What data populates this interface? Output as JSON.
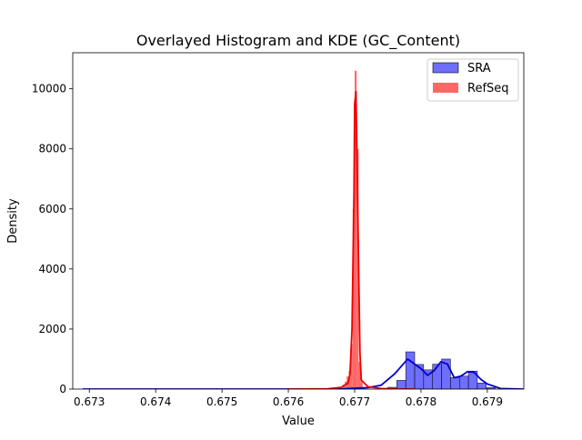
{
  "chart_data": {
    "type": "histogram",
    "title": "Overlayed Histogram and KDE (GC_Content)",
    "xlabel": "Value",
    "ylabel": "Density",
    "xlim": [
      0.67275,
      0.67955
    ],
    "ylim": [
      0,
      11200
    ],
    "xticks": [
      0.673,
      0.674,
      0.675,
      0.676,
      0.677,
      0.678,
      0.679
    ],
    "xtick_labels": [
      "0.673",
      "0.674",
      "0.675",
      "0.676",
      "0.677",
      "0.678",
      "0.679"
    ],
    "yticks": [
      0,
      2000,
      4000,
      6000,
      8000,
      10000
    ],
    "ytick_labels": [
      "0",
      "2000",
      "4000",
      "6000",
      "8000",
      "10000"
    ],
    "grid": false,
    "legend_position": "top-right",
    "series": [
      {
        "name": "SRA",
        "kind": "histogram+kde",
        "fill": "#5555ff",
        "fill_opacity": 0.85,
        "line_color": "#0000cc",
        "bin_width": 0.000135,
        "bins": [
          {
            "x0": 0.6775,
            "density": 60
          },
          {
            "x0": 0.677635,
            "density": 290
          },
          {
            "x0": 0.67777,
            "density": 1240
          },
          {
            "x0": 0.677905,
            "density": 820
          },
          {
            "x0": 0.67804,
            "density": 640
          },
          {
            "x0": 0.678175,
            "density": 830
          },
          {
            "x0": 0.67831,
            "density": 1000
          },
          {
            "x0": 0.678445,
            "density": 380
          },
          {
            "x0": 0.67858,
            "density": 430
          },
          {
            "x0": 0.678715,
            "density": 600
          },
          {
            "x0": 0.67885,
            "density": 200
          },
          {
            "x0": 0.678985,
            "density": 50
          }
        ],
        "kde": {
          "x": [
            0.6729,
            0.676,
            0.6768,
            0.6772,
            0.6774,
            0.6776,
            0.6778,
            0.678,
            0.6781,
            0.6782,
            0.6783,
            0.6784,
            0.6785,
            0.6786,
            0.6787,
            0.6788,
            0.6789,
            0.679,
            0.6792,
            0.67955
          ],
          "y": [
            0,
            0,
            5,
            50,
            130,
            500,
            1000,
            680,
            460,
            620,
            910,
            830,
            380,
            430,
            580,
            560,
            330,
            170,
            20,
            0
          ]
        }
      },
      {
        "name": "RefSeq",
        "kind": "histogram+kde",
        "fill": "#ff5555",
        "fill_opacity": 0.9,
        "line_color": "#ee0000",
        "bin_width": 3e-05,
        "bins": [
          {
            "x0": 0.67682,
            "density": 150
          },
          {
            "x0": 0.67685,
            "density": 250
          },
          {
            "x0": 0.67688,
            "density": 420
          },
          {
            "x0": 0.67691,
            "density": 600
          },
          {
            "x0": 0.67694,
            "density": 1500
          },
          {
            "x0": 0.67697,
            "density": 6000
          },
          {
            "x0": 0.677,
            "density": 10600
          },
          {
            "x0": 0.67703,
            "density": 8000
          },
          {
            "x0": 0.67706,
            "density": 900
          },
          {
            "x0": 0.67709,
            "density": 250
          }
        ],
        "kde": {
          "x": [
            0.676,
            0.6766,
            0.6768,
            0.6769,
            0.67693,
            0.67696,
            0.67699,
            0.677,
            0.67702,
            0.67705,
            0.67708,
            0.6771,
            0.6772,
            0.6774,
            0.6776,
            0.6779
          ],
          "y": [
            0,
            10,
            60,
            200,
            500,
            2000,
            6500,
            9500,
            9900,
            5500,
            1200,
            300,
            80,
            20,
            5,
            0
          ]
        }
      }
    ]
  }
}
